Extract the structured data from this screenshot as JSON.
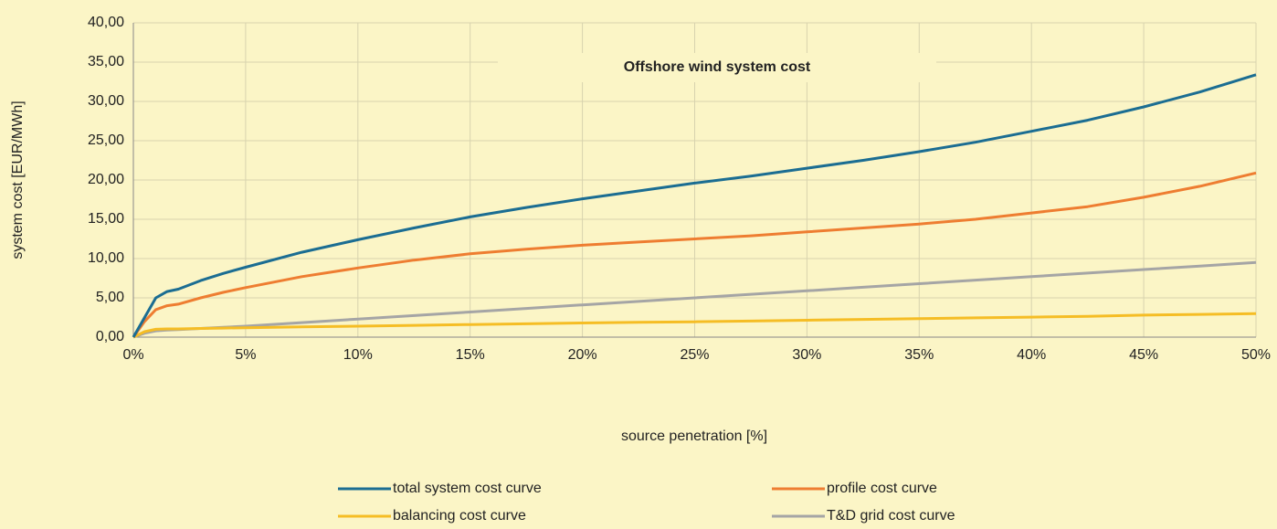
{
  "chart_data": {
    "type": "line",
    "title": "Offshore wind system cost",
    "xlabel": "source penetration [%]",
    "ylabel": "system cost [EUR/MWh]",
    "x": [
      0,
      0.5,
      1,
      1.5,
      2,
      3,
      4,
      5,
      7.5,
      10,
      12.5,
      15,
      17.5,
      20,
      22.5,
      25,
      27.5,
      30,
      32.5,
      35,
      37.5,
      40,
      42.5,
      45,
      47.5,
      50
    ],
    "series": [
      {
        "name": "total system cost curve",
        "color": "#1b6d92",
        "values": [
          0,
          2.5,
          5,
          5.8,
          6.1,
          7.2,
          8.1,
          8.9,
          10.8,
          12.4,
          13.9,
          15.3,
          16.5,
          17.6,
          18.6,
          19.6,
          20.5,
          21.5,
          22.5,
          23.6,
          24.8,
          26.2,
          27.6,
          29.3,
          31.2,
          33.4
        ]
      },
      {
        "name": "profile cost curve",
        "color": "#ee7d31",
        "values": [
          0,
          2,
          3.5,
          4,
          4.2,
          5,
          5.7,
          6.3,
          7.7,
          8.8,
          9.8,
          10.6,
          11.2,
          11.7,
          12.1,
          12.5,
          12.9,
          13.4,
          13.9,
          14.4,
          15,
          15.8,
          16.6,
          17.8,
          19.2,
          20.9
        ]
      },
      {
        "name": "balancing cost curve",
        "color": "#f5bd25",
        "values": [
          0,
          0.7,
          1.0,
          1.05,
          1.05,
          1.1,
          1.15,
          1.2,
          1.3,
          1.4,
          1.5,
          1.6,
          1.7,
          1.8,
          1.9,
          1.95,
          2.05,
          2.15,
          2.25,
          2.35,
          2.45,
          2.55,
          2.65,
          2.8,
          2.9,
          3.0
        ]
      },
      {
        "name": "T&D grid cost curve",
        "color": "#a5a5a5",
        "values": [
          0,
          0.5,
          0.8,
          0.9,
          0.95,
          1.1,
          1.25,
          1.4,
          1.85,
          2.3,
          2.75,
          3.2,
          3.65,
          4.1,
          4.55,
          5.0,
          5.45,
          5.9,
          6.35,
          6.8,
          7.25,
          7.7,
          8.15,
          8.6,
          9.05,
          9.5
        ]
      }
    ],
    "xlim": [
      0,
      50
    ],
    "xticks": [
      {
        "value": 0,
        "label": "0%"
      },
      {
        "value": 5,
        "label": "5%"
      },
      {
        "value": 10,
        "label": "10%"
      },
      {
        "value": 15,
        "label": "15%"
      },
      {
        "value": 20,
        "label": "20%"
      },
      {
        "value": 25,
        "label": "25%"
      },
      {
        "value": 30,
        "label": "30%"
      },
      {
        "value": 35,
        "label": "35%"
      },
      {
        "value": 40,
        "label": "40%"
      },
      {
        "value": 45,
        "label": "45%"
      },
      {
        "value": 50,
        "label": "50%"
      }
    ],
    "ylim": [
      0,
      40
    ],
    "yticks": [
      {
        "value": 0,
        "label": "0,00"
      },
      {
        "value": 5,
        "label": "5,00"
      },
      {
        "value": 10,
        "label": "10,00"
      },
      {
        "value": 15,
        "label": "15,00"
      },
      {
        "value": 20,
        "label": "20,00"
      },
      {
        "value": 25,
        "label": "25,00"
      },
      {
        "value": 30,
        "label": "30,00"
      },
      {
        "value": 35,
        "label": "35,00"
      },
      {
        "value": 40,
        "label": "40,00"
      }
    ],
    "grid": true
  }
}
